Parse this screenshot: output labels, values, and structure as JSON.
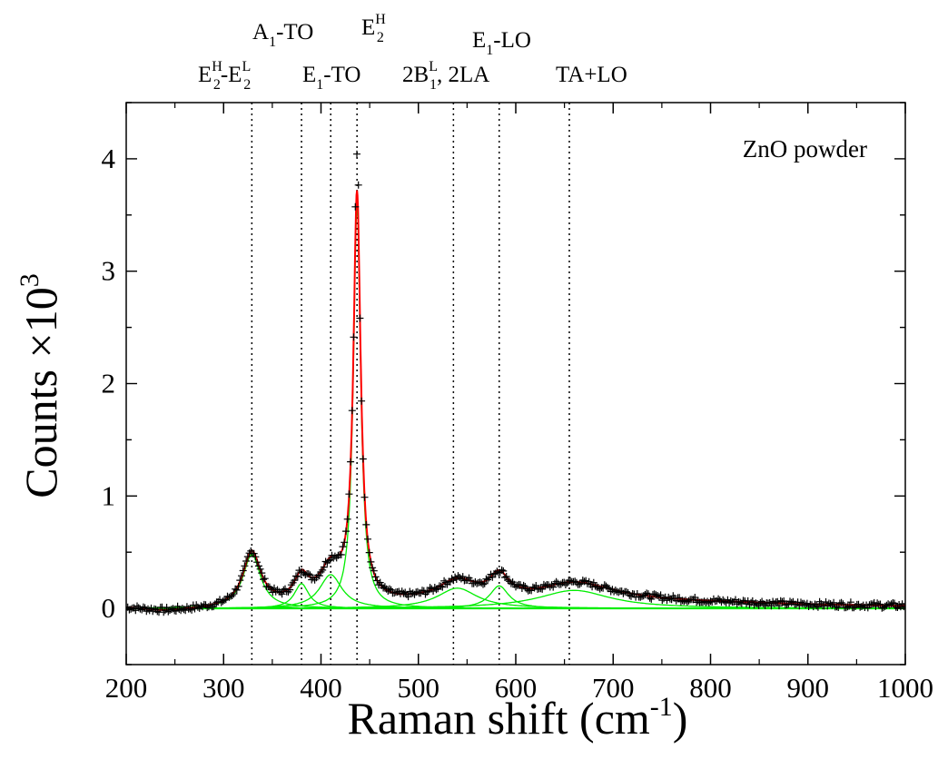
{
  "chart_data": {
    "type": "line",
    "title": "",
    "xlabel": "Raman shift (cm",
    "xlabel_sup": "-1",
    "xlabel_end": ")",
    "ylabel": "Counts ×10",
    "ylabel_sup": "3",
    "xlim": [
      200,
      1000
    ],
    "ylim": [
      -0.5,
      4.5
    ],
    "xticks": [
      200,
      300,
      400,
      500,
      600,
      700,
      800,
      900,
      1000
    ],
    "xtick_labels": [
      "200",
      "300",
      "400",
      "500",
      "600",
      "700",
      "800",
      "900",
      "1000"
    ],
    "yticks": [
      0,
      1,
      2,
      3,
      4
    ],
    "ytick_labels": [
      "0",
      "1",
      "2",
      "3",
      "4"
    ],
    "grid": false,
    "annotation": "ZnO powder",
    "peak_markers": [
      {
        "x": 329,
        "label": "E2H-E2L"
      },
      {
        "x": 380,
        "label": "A1-TO"
      },
      {
        "x": 410,
        "label": "E1-TO"
      },
      {
        "x": 437,
        "label": "E2H"
      },
      {
        "x": 536,
        "label": "2B1L, 2LA"
      },
      {
        "x": 583,
        "label": "E1-LO"
      },
      {
        "x": 655,
        "label": "TA+LO"
      }
    ],
    "peak_labels": {
      "e2h_e2l": {
        "a": "E",
        "a_sup": "H",
        "a_sub": "2",
        "sep": "-",
        "b": "E",
        "b_sup": "L",
        "b_sub": "2"
      },
      "a1_to": {
        "main": "A",
        "sub": "1",
        "rest": "-TO"
      },
      "e2h": {
        "main": "E",
        "sup": "H",
        "sub": "2"
      },
      "e1_to": {
        "main": "E",
        "sub": "1",
        "rest": "-TO"
      },
      "b1_2la": {
        "main": "2B",
        "sup": "L",
        "sub": "1",
        "rest": ", 2LA"
      },
      "e1_lo": {
        "main": "E",
        "sub": "1",
        "rest": "-LO"
      },
      "ta_lo": {
        "main": "TA+LO"
      }
    },
    "series": [
      {
        "kind": "data",
        "marker": "+",
        "color": "#000000"
      },
      {
        "kind": "fit",
        "color": "#ff0000"
      },
      {
        "kind": "lorentz-components",
        "color": "#00ee00"
      }
    ],
    "baseline": [
      [
        200,
        0.0
      ],
      [
        240,
        -0.03
      ],
      [
        290,
        -0.01
      ],
      [
        340,
        0.01
      ],
      [
        500,
        0.04
      ],
      [
        620,
        0.05
      ],
      [
        700,
        0.07
      ],
      [
        800,
        0.05
      ],
      [
        900,
        0.03
      ],
      [
        1000,
        0.02
      ]
    ],
    "components": [
      {
        "center": 329,
        "height": 0.48,
        "hwhm": 11
      },
      {
        "center": 380,
        "height": 0.22,
        "hwhm": 9
      },
      {
        "center": 410,
        "height": 0.3,
        "hwhm": 14
      },
      {
        "center": 437,
        "height": 3.6,
        "hwhm": 4.5
      },
      {
        "center": 540,
        "height": 0.18,
        "hwhm": 25
      },
      {
        "center": 583,
        "height": 0.2,
        "hwhm": 12
      },
      {
        "center": 660,
        "height": 0.16,
        "hwhm": 45
      }
    ],
    "data_points_sample": [
      {
        "x": 437,
        "y": 4.05
      },
      {
        "x": 438,
        "y": 3.55
      },
      {
        "x": 441,
        "y": 2.55
      },
      {
        "x": 444,
        "y": 1.48
      },
      {
        "x": 446,
        "y": 0.86
      },
      {
        "x": 329,
        "y": 0.5
      },
      {
        "x": 380,
        "y": 0.38
      },
      {
        "x": 583,
        "y": 0.37
      },
      {
        "x": 660,
        "y": 0.24
      }
    ]
  }
}
